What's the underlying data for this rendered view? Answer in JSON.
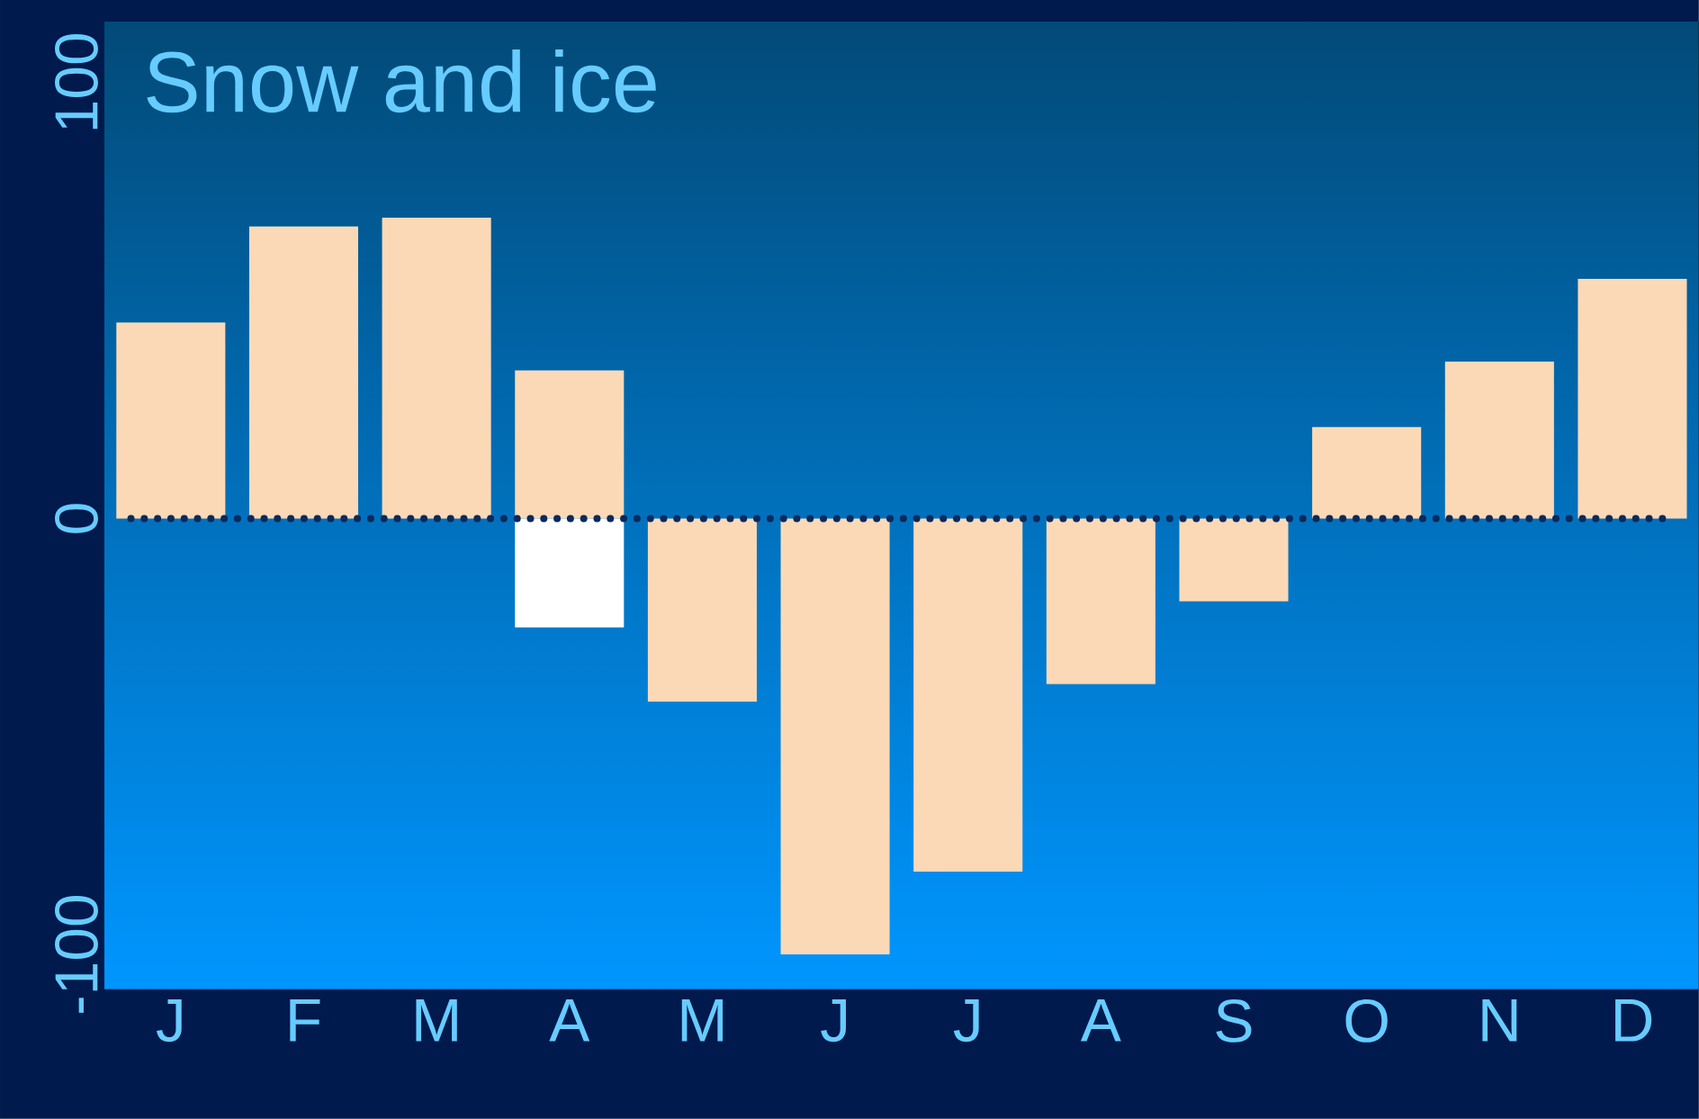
{
  "chart_data": {
    "type": "bar",
    "title": "Snow and ice",
    "categories": [
      "J",
      "F",
      "M",
      "A",
      "M",
      "J",
      "J",
      "A",
      "S",
      "O",
      "N",
      "D"
    ],
    "series": [
      {
        "color": "#fcd9b6",
        "values": [
          45,
          67,
          69,
          34,
          -42,
          -100,
          -81,
          -38,
          -19,
          21,
          36,
          55
        ]
      },
      {
        "color": "#ffffff",
        "values": [
          null,
          null,
          null,
          -25,
          null,
          null,
          null,
          null,
          null,
          null,
          null,
          null
        ]
      }
    ],
    "ylim": [
      -108,
      114
    ],
    "yticks": [
      -100,
      0,
      100
    ],
    "ref_lines": [
      {
        "axis": "y",
        "value": 0,
        "color": "#0a2a5c",
        "line_style": "dotted"
      }
    ]
  }
}
